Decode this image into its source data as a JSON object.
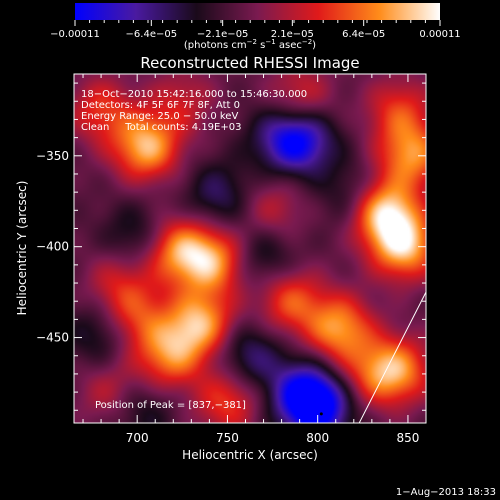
{
  "colorbar": {
    "tick_labels": [
      "−0.00011",
      "−6.4e−05",
      "−2.1e−05",
      "2.1e−05",
      "6.4e−05",
      "0.00011"
    ],
    "tick_values": [
      -0.00011,
      -6.4e-05,
      -2.1e-05,
      2.1e-05,
      6.4e-05,
      0.00011
    ],
    "range": [
      -0.00011,
      0.00011
    ],
    "unit_label": "(photons cm",
    "unit_exp1": "−2",
    "unit_mid": " s",
    "unit_exp2": "−1",
    "unit_tail": " asec",
    "unit_exp3": "−2",
    "unit_close": ")",
    "colormap": [
      "#0000ff",
      "#4a1aa0",
      "#1a0a1a",
      "#7a1a50",
      "#e01a1a",
      "#ff8c1a",
      "#ffffff"
    ]
  },
  "chart_data": {
    "type": "heatmap",
    "title": "Reconstructed RHESSI Image",
    "xlabel": "Heliocentric X (arcsec)",
    "ylabel": "Heliocentric Y (arcsec)",
    "xlim": [
      665,
      860
    ],
    "ylim": [
      -497,
      -305
    ],
    "xticks": [
      700,
      750,
      800,
      850
    ],
    "xtick_labels": [
      "700",
      "750",
      "800",
      "850"
    ],
    "yticks": [
      -350,
      -400,
      -450
    ],
    "ytick_labels": [
      "−350",
      "−400",
      "−450"
    ],
    "annotations": [
      "18−Oct−2010 15:42:16.000 to 15:46:30.000",
      "Detectors: 4F 5F 6F 7F 8F, Att 0",
      "Energy Range: 25.0 − 50.0 keV",
      "Clean     Total counts: 4.19E+03"
    ],
    "peak_label": "Position of Peak = [837,−381]",
    "peak": [
      837,
      -381
    ],
    "limb_line": [
      [
        823,
        -497
      ],
      [
        860,
        -425
      ]
    ],
    "blobs": [
      {
        "x": 680,
        "y": -325,
        "v": 0.5
      },
      {
        "x": 705,
        "y": -345,
        "v": 0.9
      },
      {
        "x": 725,
        "y": -320,
        "v": 0.35
      },
      {
        "x": 790,
        "y": -318,
        "v": 0.45
      },
      {
        "x": 845,
        "y": -325,
        "v": 0.5
      },
      {
        "x": 852,
        "y": -350,
        "v": 0.75
      },
      {
        "x": 837,
        "y": -381,
        "v": 1.0
      },
      {
        "x": 848,
        "y": -400,
        "v": 0.9
      },
      {
        "x": 775,
        "y": -380,
        "v": 0.35
      },
      {
        "x": 722,
        "y": -402,
        "v": 0.75
      },
      {
        "x": 690,
        "y": -420,
        "v": 0.4
      },
      {
        "x": 742,
        "y": -408,
        "v": 0.8
      },
      {
        "x": 735,
        "y": -442,
        "v": 0.85
      },
      {
        "x": 718,
        "y": -460,
        "v": 0.7
      },
      {
        "x": 700,
        "y": -440,
        "v": 0.5
      },
      {
        "x": 785,
        "y": -430,
        "v": 0.6
      },
      {
        "x": 812,
        "y": -445,
        "v": 0.8
      },
      {
        "x": 830,
        "y": -470,
        "v": 0.45
      },
      {
        "x": 845,
        "y": -468,
        "v": 0.7
      },
      {
        "x": 685,
        "y": -480,
        "v": 0.35
      },
      {
        "x": 750,
        "y": -485,
        "v": 0.55
      },
      {
        "x": 700,
        "y": -395,
        "v": -0.35
      },
      {
        "x": 745,
        "y": -372,
        "v": -0.4
      },
      {
        "x": 770,
        "y": -405,
        "v": -0.35
      },
      {
        "x": 780,
        "y": -340,
        "v": -0.45
      },
      {
        "x": 792,
        "y": -342,
        "v": -0.65
      },
      {
        "x": 762,
        "y": -460,
        "v": -0.45
      },
      {
        "x": 790,
        "y": -480,
        "v": -0.55
      },
      {
        "x": 800,
        "y": -488,
        "v": -0.95
      },
      {
        "x": 702,
        "y": -490,
        "v": -0.3
      },
      {
        "x": 680,
        "y": -448,
        "v": -0.35
      },
      {
        "x": 820,
        "y": -372,
        "v": -0.3
      }
    ]
  },
  "footer": {
    "timestamp": "1−Aug−2013 18:33"
  }
}
